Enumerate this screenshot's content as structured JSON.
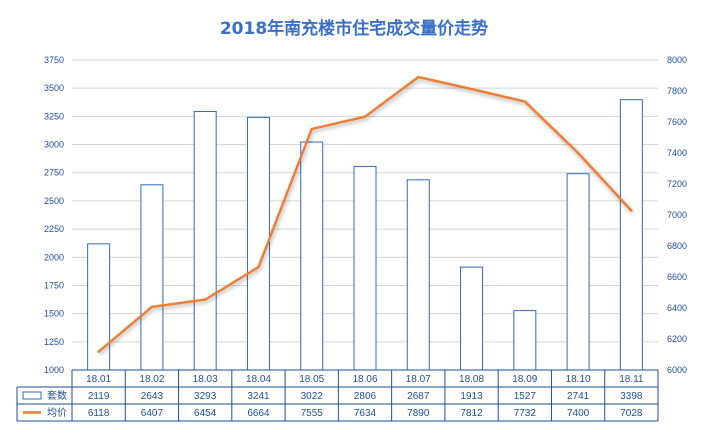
{
  "chart_data": {
    "type": "bar+line",
    "title": "2018年南充楼市住宅成交量价走势",
    "categories": [
      "18.01",
      "18.02",
      "18.03",
      "18.04",
      "18.05",
      "18.06",
      "18.07",
      "18.08",
      "18.09",
      "18.10",
      "18.11"
    ],
    "series": [
      {
        "name": "套数",
        "type": "bar",
        "axis": "left",
        "color": "#2e6bbf",
        "values": [
          2119,
          2643,
          3293,
          3241,
          3022,
          2806,
          2687,
          1913,
          1527,
          2741,
          3398
        ]
      },
      {
        "name": "均价",
        "type": "line",
        "axis": "right",
        "color": "#ed7d31",
        "values": [
          6118,
          6407,
          6454,
          6664,
          7555,
          7634,
          7890,
          7812,
          7732,
          7400,
          7028
        ]
      }
    ],
    "ylim_left": [
      1000,
      3750
    ],
    "yticks_left": [
      "1000",
      "1250",
      "1500",
      "1750",
      "2000",
      "2250",
      "2500",
      "2750",
      "3000",
      "3250",
      "3500",
      "3750"
    ],
    "ylim_right": [
      6000,
      8000
    ],
    "yticks_right": [
      "6000",
      "6200",
      "6400",
      "6600",
      "6800",
      "7000",
      "7200",
      "7400",
      "7600",
      "7800",
      "8000"
    ],
    "grid": true,
    "legend": "data-table",
    "table": true
  }
}
